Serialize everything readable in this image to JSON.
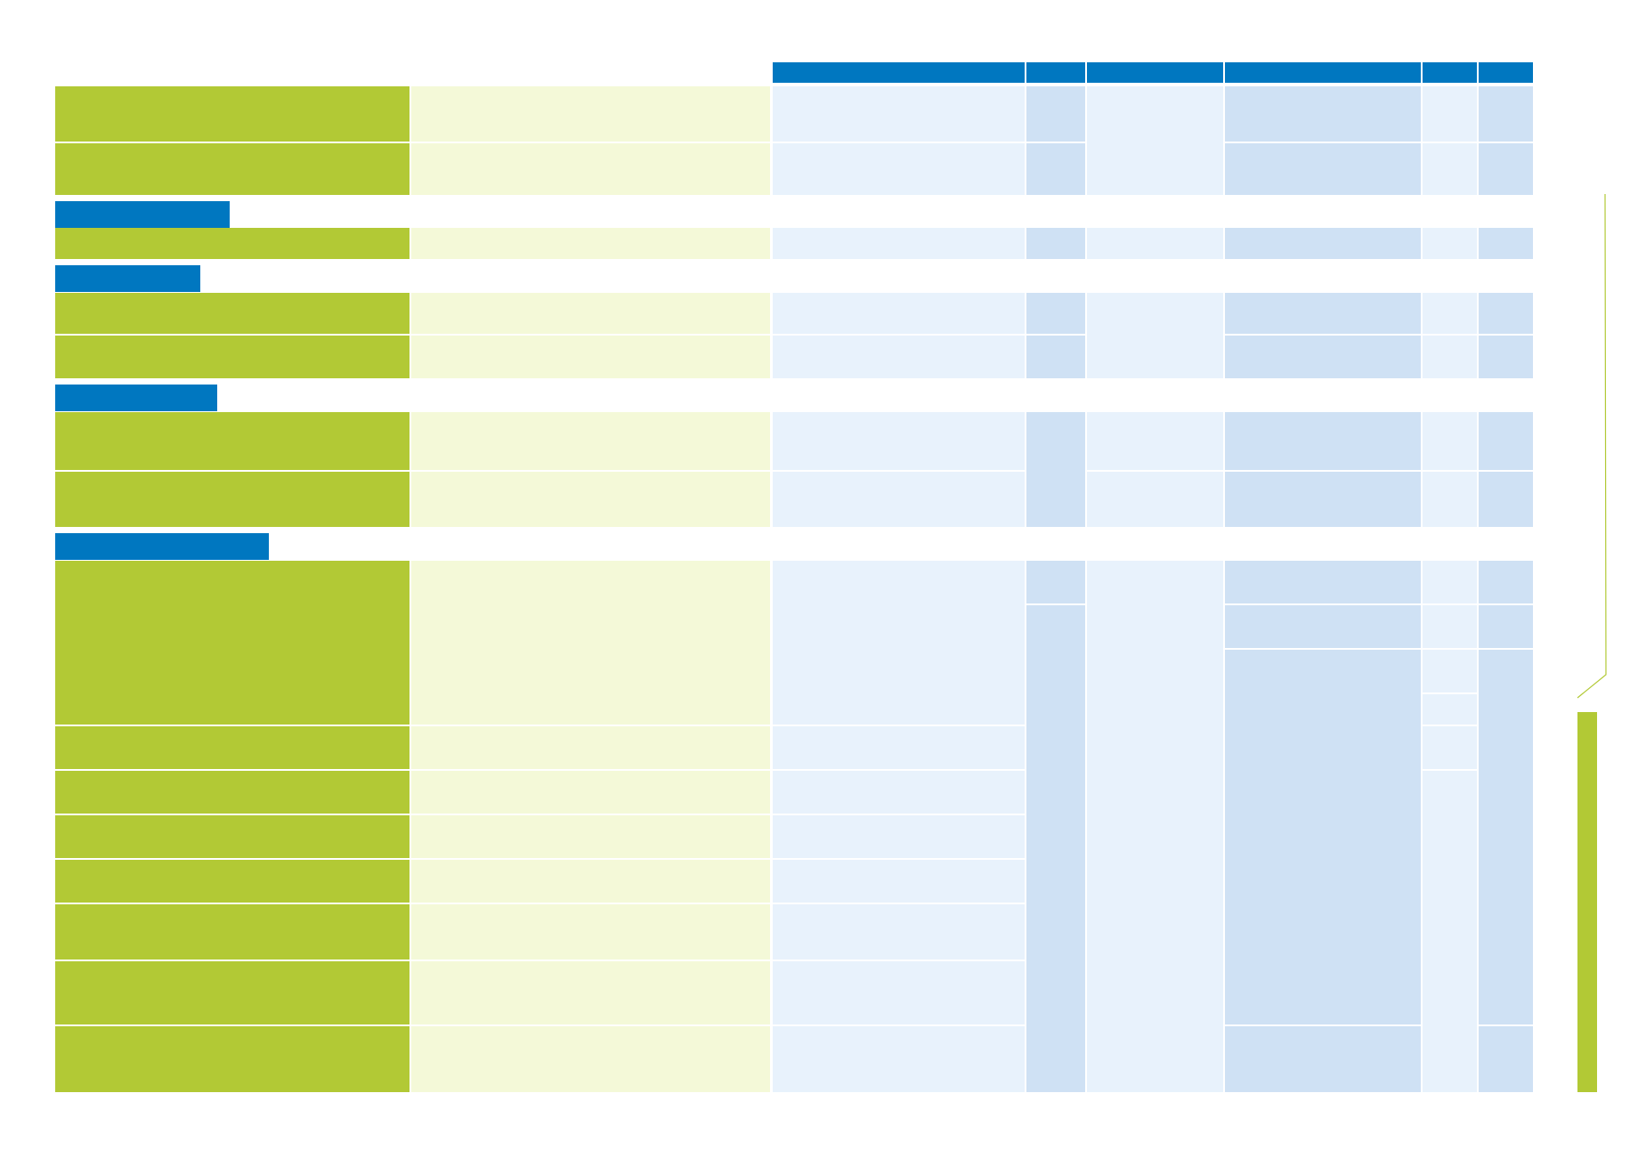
{
  "colors": {
    "header_blue": "#0077c0",
    "label_green": "#b2c935",
    "pale_green": "#f4f9d8",
    "pale_blue": "#e8f2fc",
    "light_blue": "#cfe1f4"
  },
  "table": {
    "header_cells": 6,
    "sections": 5,
    "note": ""
  }
}
